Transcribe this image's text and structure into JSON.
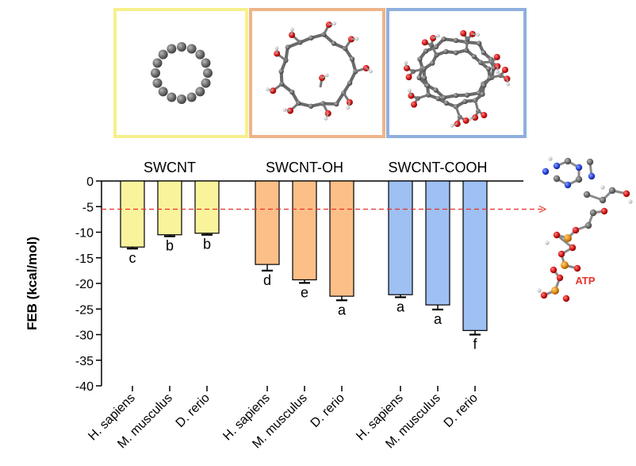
{
  "panels": [
    {
      "border_color": "#f6f08c"
    },
    {
      "border_color": "#eeb48a"
    },
    {
      "border_color": "#8fb0de"
    }
  ],
  "atp_label": "ATP",
  "chart_data": {
    "type": "bar",
    "ylabel": "FEB (kcal/mol)",
    "xlabel": "",
    "ylim": [
      -40,
      0
    ],
    "yticks": [
      0,
      -5,
      -10,
      -15,
      -20,
      -25,
      -30,
      -35,
      -40
    ],
    "grid": false,
    "reference_line": {
      "y": -5.5,
      "color": "#e8322b",
      "style": "dashed"
    },
    "groups": [
      {
        "name": "SWCNT",
        "color": "#f9f39c",
        "bars": [
          {
            "category": "H. sapiens",
            "value": -12.9,
            "error": 0.3,
            "letter": "c"
          },
          {
            "category": "M. musculus",
            "value": -10.5,
            "error": 0.3,
            "letter": "b"
          },
          {
            "category": "D. rerio",
            "value": -10.2,
            "error": 0.3,
            "letter": "b"
          }
        ]
      },
      {
        "name": "SWCNT-OH",
        "color": "#fbbf87",
        "bars": [
          {
            "category": "H. sapiens",
            "value": -16.3,
            "error": 1.2,
            "letter": "d"
          },
          {
            "category": "M. musculus",
            "value": -19.3,
            "error": 0.6,
            "letter": "e"
          },
          {
            "category": "D. rerio",
            "value": -22.5,
            "error": 0.8,
            "letter": "a"
          }
        ]
      },
      {
        "name": "SWCNT-COOH",
        "color": "#9ec0f2",
        "bars": [
          {
            "category": "H. sapiens",
            "value": -22.2,
            "error": 0.5,
            "letter": "a"
          },
          {
            "category": "M. musculus",
            "value": -24.2,
            "error": 0.9,
            "letter": "a"
          },
          {
            "category": "D. rerio",
            "value": -29.2,
            "error": 0.8,
            "letter": "f"
          }
        ]
      }
    ]
  }
}
